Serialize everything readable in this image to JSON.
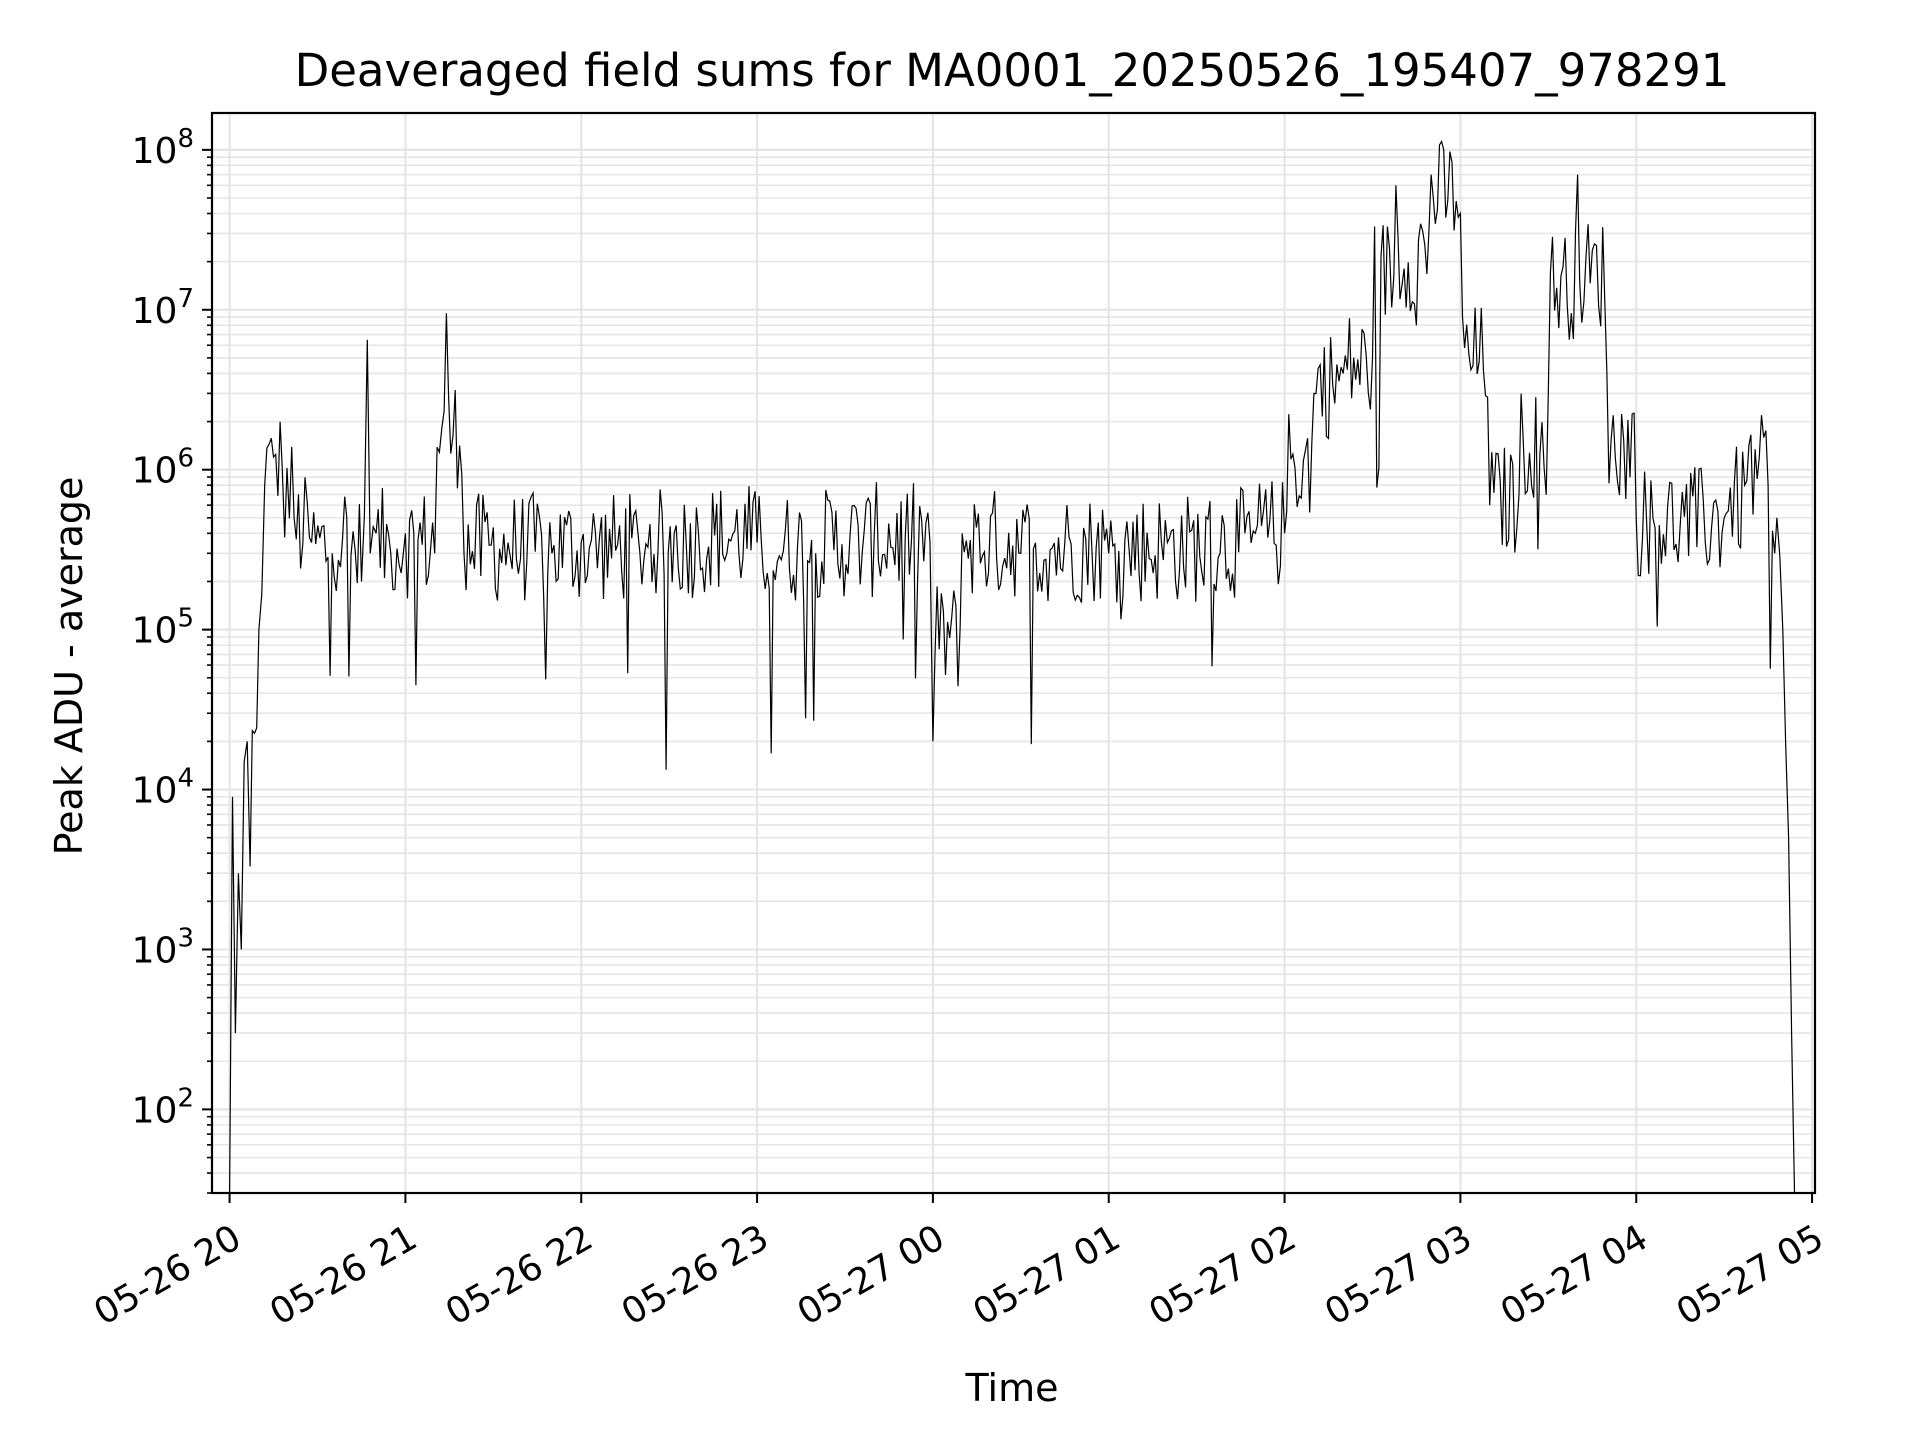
{
  "chart_data": {
    "type": "line",
    "title": "Deaveraged field sums for MA0001_20250526_195407_978291",
    "xlabel": "Time",
    "ylabel": "Peak ADU - average",
    "yscale": "log",
    "ylim": [
      30,
      170000000
    ],
    "xlim": [
      "2025-05-26 19:54",
      "2025-05-27 05:01"
    ],
    "grid": true,
    "line_color": "#000000",
    "grid_color": "#e6e6e6",
    "x_ticks": [
      {
        "t": "2025-05-26 20:00",
        "label": "05-26 20"
      },
      {
        "t": "2025-05-26 21:00",
        "label": "05-26 21"
      },
      {
        "t": "2025-05-26 22:00",
        "label": "05-26 22"
      },
      {
        "t": "2025-05-26 23:00",
        "label": "05-26 23"
      },
      {
        "t": "2025-05-27 00:00",
        "label": "05-27 00"
      },
      {
        "t": "2025-05-27 01:00",
        "label": "05-27 01"
      },
      {
        "t": "2025-05-27 02:00",
        "label": "05-27 02"
      },
      {
        "t": "2025-05-27 03:00",
        "label": "05-27 03"
      },
      {
        "t": "2025-05-27 04:00",
        "label": "05-27 04"
      },
      {
        "t": "2025-05-27 05:00",
        "label": "05-27 05"
      }
    ],
    "y_ticks": [
      {
        "value": 100,
        "base": "10",
        "exp": "2"
      },
      {
        "value": 1000,
        "base": "10",
        "exp": "3"
      },
      {
        "value": 10000,
        "base": "10",
        "exp": "4"
      },
      {
        "value": 100000,
        "base": "10",
        "exp": "5"
      },
      {
        "value": 1000000,
        "base": "10",
        "exp": "6"
      },
      {
        "value": 10000000,
        "base": "10",
        "exp": "7"
      },
      {
        "value": 100000000,
        "base": "10",
        "exp": "8"
      }
    ],
    "series": [
      {
        "x": [
          "2025-05-26 20:00",
          "2025-05-26 20:01",
          "2025-05-26 20:02",
          "2025-05-26 20:03",
          "2025-05-26 20:04",
          "2025-05-26 20:05",
          "2025-05-26 20:06",
          "2025-05-26 20:07",
          "2025-05-26 20:10",
          "2025-05-26 20:12",
          "2025-05-26 20:15",
          "2025-05-26 20:18",
          "2025-05-26 20:22",
          "2025-05-26 20:28",
          "2025-05-26 20:35",
          "2025-05-26 20:40",
          "2025-05-26 20:45",
          "2025-05-26 20:47",
          "2025-05-26 20:48",
          "2025-05-26 20:50",
          "2025-05-26 20:55",
          "2025-05-26 21:00",
          "2025-05-26 21:10",
          "2025-05-26 21:14",
          "2025-05-26 21:20",
          "2025-05-26 21:35",
          "2025-05-26 21:50",
          "2025-05-26 22:00",
          "2025-05-26 22:20",
          "2025-05-26 22:40",
          "2025-05-26 23:00",
          "2025-05-26 23:20",
          "2025-05-26 23:40",
          "2025-05-26 23:59",
          "2025-05-27 00:00",
          "2025-05-27 00:10",
          "2025-05-27 00:30",
          "2025-05-27 00:45",
          "2025-05-27 01:00",
          "2025-05-27 01:20",
          "2025-05-27 01:38",
          "2025-05-27 01:50",
          "2025-05-27 02:00",
          "2025-05-27 02:10",
          "2025-05-27 02:20",
          "2025-05-27 02:30",
          "2025-05-27 02:38",
          "2025-05-27 02:45",
          "2025-05-27 02:50",
          "2025-05-27 03:00",
          "2025-05-27 03:10",
          "2025-05-27 03:20",
          "2025-05-27 03:30",
          "2025-05-27 03:40",
          "2025-05-27 03:50",
          "2025-05-27 04:00",
          "2025-05-27 04:15",
          "2025-05-27 04:30",
          "2025-05-27 04:37",
          "2025-05-27 04:42",
          "2025-05-27 04:45",
          "2025-05-27 04:48",
          "2025-05-27 04:50",
          "2025-05-27 04:52",
          "2025-05-27 04:53",
          "2025-05-27 04:54"
        ],
        "y": [
          30,
          9000,
          300,
          3000,
          1000,
          15000,
          20000,
          3300,
          100000,
          800000,
          1200000,
          1000000,
          500000,
          350000,
          300000,
          500000,
          200000,
          6500000,
          300000,
          400000,
          300000,
          400000,
          300000,
          9500000,
          300000,
          350000,
          300000,
          350000,
          300000,
          400000,
          350000,
          300000,
          400000,
          350000,
          20000,
          400000,
          300000,
          350000,
          300000,
          350000,
          300000,
          400000,
          400000,
          3000000,
          4000000,
          5000000,
          60000000,
          8000000,
          70000000,
          40000000,
          600000,
          700000,
          3000000,
          70000000,
          4000000,
          500000,
          450000,
          500000,
          800000,
          1200000,
          800000,
          500000,
          100000,
          5000,
          300,
          30
        ]
      }
    ]
  }
}
